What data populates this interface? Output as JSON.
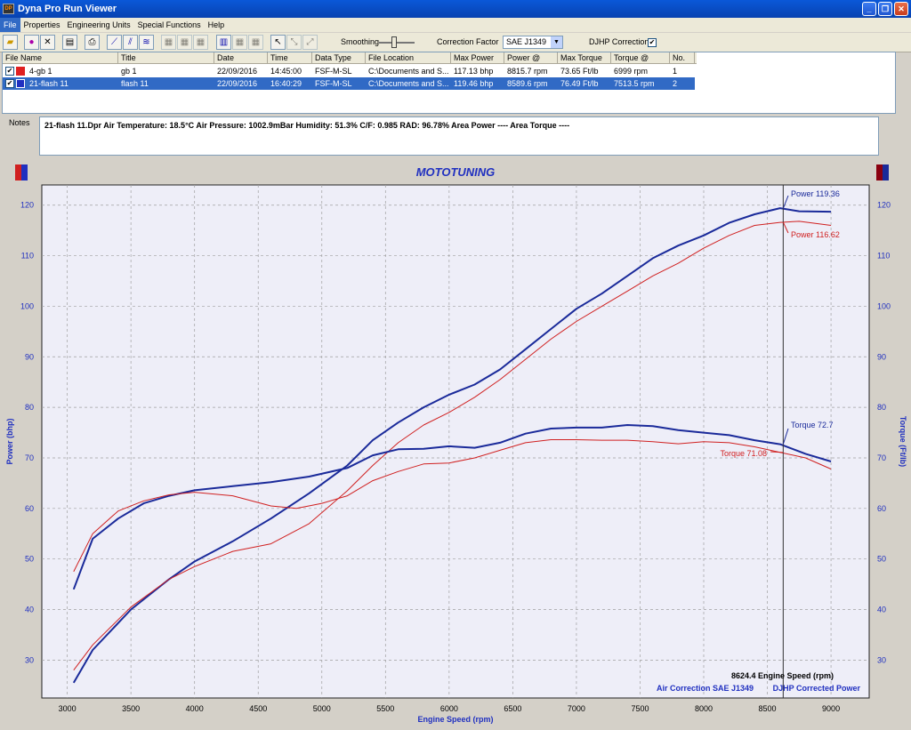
{
  "window": {
    "title": "Dyna Pro Run Viewer"
  },
  "menu": [
    "File",
    "Properties",
    "Engineering Units",
    "Special Functions",
    "Help"
  ],
  "toolbar": {
    "smoothing_label": "Smoothing",
    "correction_factor_label": "Correction Factor",
    "correction_factor_value": "SAE J1349",
    "djhp_label": "DJHP Correction",
    "djhp_checked": true
  },
  "runs_table": {
    "columns": [
      "File Name",
      "Title",
      "Date",
      "Time",
      "Data Type",
      "File Location",
      "Max Power",
      "Power @",
      "Max Torque",
      "Torque @",
      "No."
    ],
    "rows": [
      {
        "checked": true,
        "color": "#e02020",
        "file_name": "4-gb 1",
        "title": "gb 1",
        "date": "22/09/2016",
        "time": "14:45:00",
        "data_type": "FSF-M-SL",
        "file_location": "C:\\Documents and S...",
        "max_power": "117.13 bhp",
        "power_at": "8815.7 rpm",
        "max_torque": "73.65 Ft/lb",
        "torque_at": "6999 rpm",
        "no": "1"
      },
      {
        "checked": true,
        "color": "#2030c0",
        "file_name": "21-flash 11",
        "title": "flash 11",
        "date": "22/09/2016",
        "time": "16:40:29",
        "data_type": "FSF-M-SL",
        "file_location": "C:\\Documents and S...",
        "max_power": "119.46 bhp",
        "power_at": "8589.6 rpm",
        "max_torque": "76.49 Ft/lb",
        "torque_at": "7513.5 rpm",
        "no": "2"
      }
    ]
  },
  "notes": {
    "label": "Notes",
    "text": "21-flash 11.Dpr   Air Temperature: 18.5°C    Air Pressure: 1002.9mBar    Humidity: 51.3%    C/F: 0.985    RAD: 96.78%   Area Power ----    Area Torque ----"
  },
  "colors": {
    "run1": "#d02020",
    "run2": "#1a2a9a",
    "chart_bg": "#eeeef8",
    "grid": "#a0a0a0"
  },
  "chart_data": {
    "type": "line",
    "title": "MOTOTUNING",
    "xlabel": "Engine Speed (rpm)",
    "ylabel_left": "Power (bhp)",
    "ylabel_right": "Torque (Ft/lb)",
    "xlim": [
      2800,
      9300
    ],
    "ylim": [
      22.5,
      124
    ],
    "x_ticks": [
      3000,
      3500,
      4000,
      4500,
      5000,
      5500,
      6000,
      6500,
      7000,
      7500,
      8000,
      8500,
      9000
    ],
    "y_ticks": [
      30,
      40,
      50,
      60,
      70,
      80,
      90,
      100,
      110,
      120
    ],
    "cursor": {
      "rpm": 8624.4,
      "label": "8624.4 Engine Speed (rpm)"
    },
    "footer_left": "Air Correction SAE J1349",
    "footer_right": "DJHP Corrected Power",
    "annotations": {
      "power_run2": "Power 119.36",
      "power_run1": "Power 116.62",
      "torque_run2": "Torque 72.7",
      "torque_run1": "Torque 71.08"
    },
    "series": [
      {
        "run": "21-flash 11",
        "quantity": "Power",
        "color": "#1a2a9a",
        "x": [
          3050,
          3200,
          3500,
          3800,
          4000,
          4300,
          4600,
          4900,
          5200,
          5400,
          5600,
          5800,
          6000,
          6200,
          6400,
          6600,
          6800,
          7000,
          7200,
          7400,
          7600,
          7800,
          8000,
          8200,
          8400,
          8600,
          8750,
          9000
        ],
        "y": [
          25.5,
          32,
          40,
          46,
          49.5,
          53.5,
          58,
          63,
          68.5,
          73.5,
          77,
          80,
          82.5,
          84.5,
          87.5,
          91.5,
          95.5,
          99.5,
          102.5,
          106,
          109.5,
          112,
          114,
          116.5,
          118.2,
          119.4,
          118.8,
          118.7
        ]
      },
      {
        "run": "4-gb 1",
        "quantity": "Power",
        "color": "#d02020",
        "x": [
          3050,
          3200,
          3500,
          3800,
          4000,
          4300,
          4600,
          4900,
          5200,
          5400,
          5600,
          5800,
          6000,
          6200,
          6400,
          6600,
          6800,
          7000,
          7200,
          7400,
          7600,
          7800,
          8000,
          8200,
          8400,
          8600,
          8750,
          9000
        ],
        "y": [
          28,
          33,
          40.5,
          46,
          48.5,
          51.5,
          53,
          57,
          63.5,
          68.5,
          73,
          76.5,
          79,
          82,
          85.5,
          89.5,
          93.5,
          97,
          100,
          103,
          106,
          108.5,
          111.5,
          114,
          116,
          116.6,
          116.8,
          116
        ]
      },
      {
        "run": "21-flash 11",
        "quantity": "Torque",
        "color": "#1a2a9a",
        "x": [
          3050,
          3200,
          3400,
          3600,
          3800,
          4000,
          4300,
          4600,
          4900,
          5200,
          5400,
          5600,
          5800,
          6000,
          6200,
          6400,
          6600,
          6800,
          7000,
          7200,
          7400,
          7600,
          7800,
          8000,
          8200,
          8400,
          8600,
          8800,
          9000
        ],
        "y": [
          44,
          54,
          58,
          61,
          62.5,
          63.6,
          64.4,
          65.2,
          66.3,
          68,
          70.5,
          71.7,
          71.8,
          72.3,
          72,
          73,
          74.8,
          75.8,
          76,
          76,
          76.5,
          76.3,
          75.5,
          75,
          74.5,
          73.5,
          72.7,
          70.8,
          69.3
        ]
      },
      {
        "run": "4-gb 1",
        "quantity": "Torque",
        "color": "#d02020",
        "x": [
          3050,
          3200,
          3400,
          3600,
          3800,
          4000,
          4300,
          4600,
          4800,
          5000,
          5200,
          5400,
          5600,
          5800,
          6000,
          6200,
          6400,
          6600,
          6800,
          7000,
          7200,
          7400,
          7600,
          7800,
          8000,
          8200,
          8400,
          8600,
          8800,
          9000
        ],
        "y": [
          47.5,
          55,
          59.5,
          61.5,
          62.7,
          63.2,
          62.5,
          60.5,
          60,
          61,
          62.5,
          65.5,
          67.3,
          68.8,
          69,
          70,
          71.5,
          73,
          73.6,
          73.6,
          73.5,
          73.5,
          73.2,
          72.8,
          73.2,
          73,
          72.2,
          71.1,
          70,
          67.8
        ]
      }
    ]
  }
}
